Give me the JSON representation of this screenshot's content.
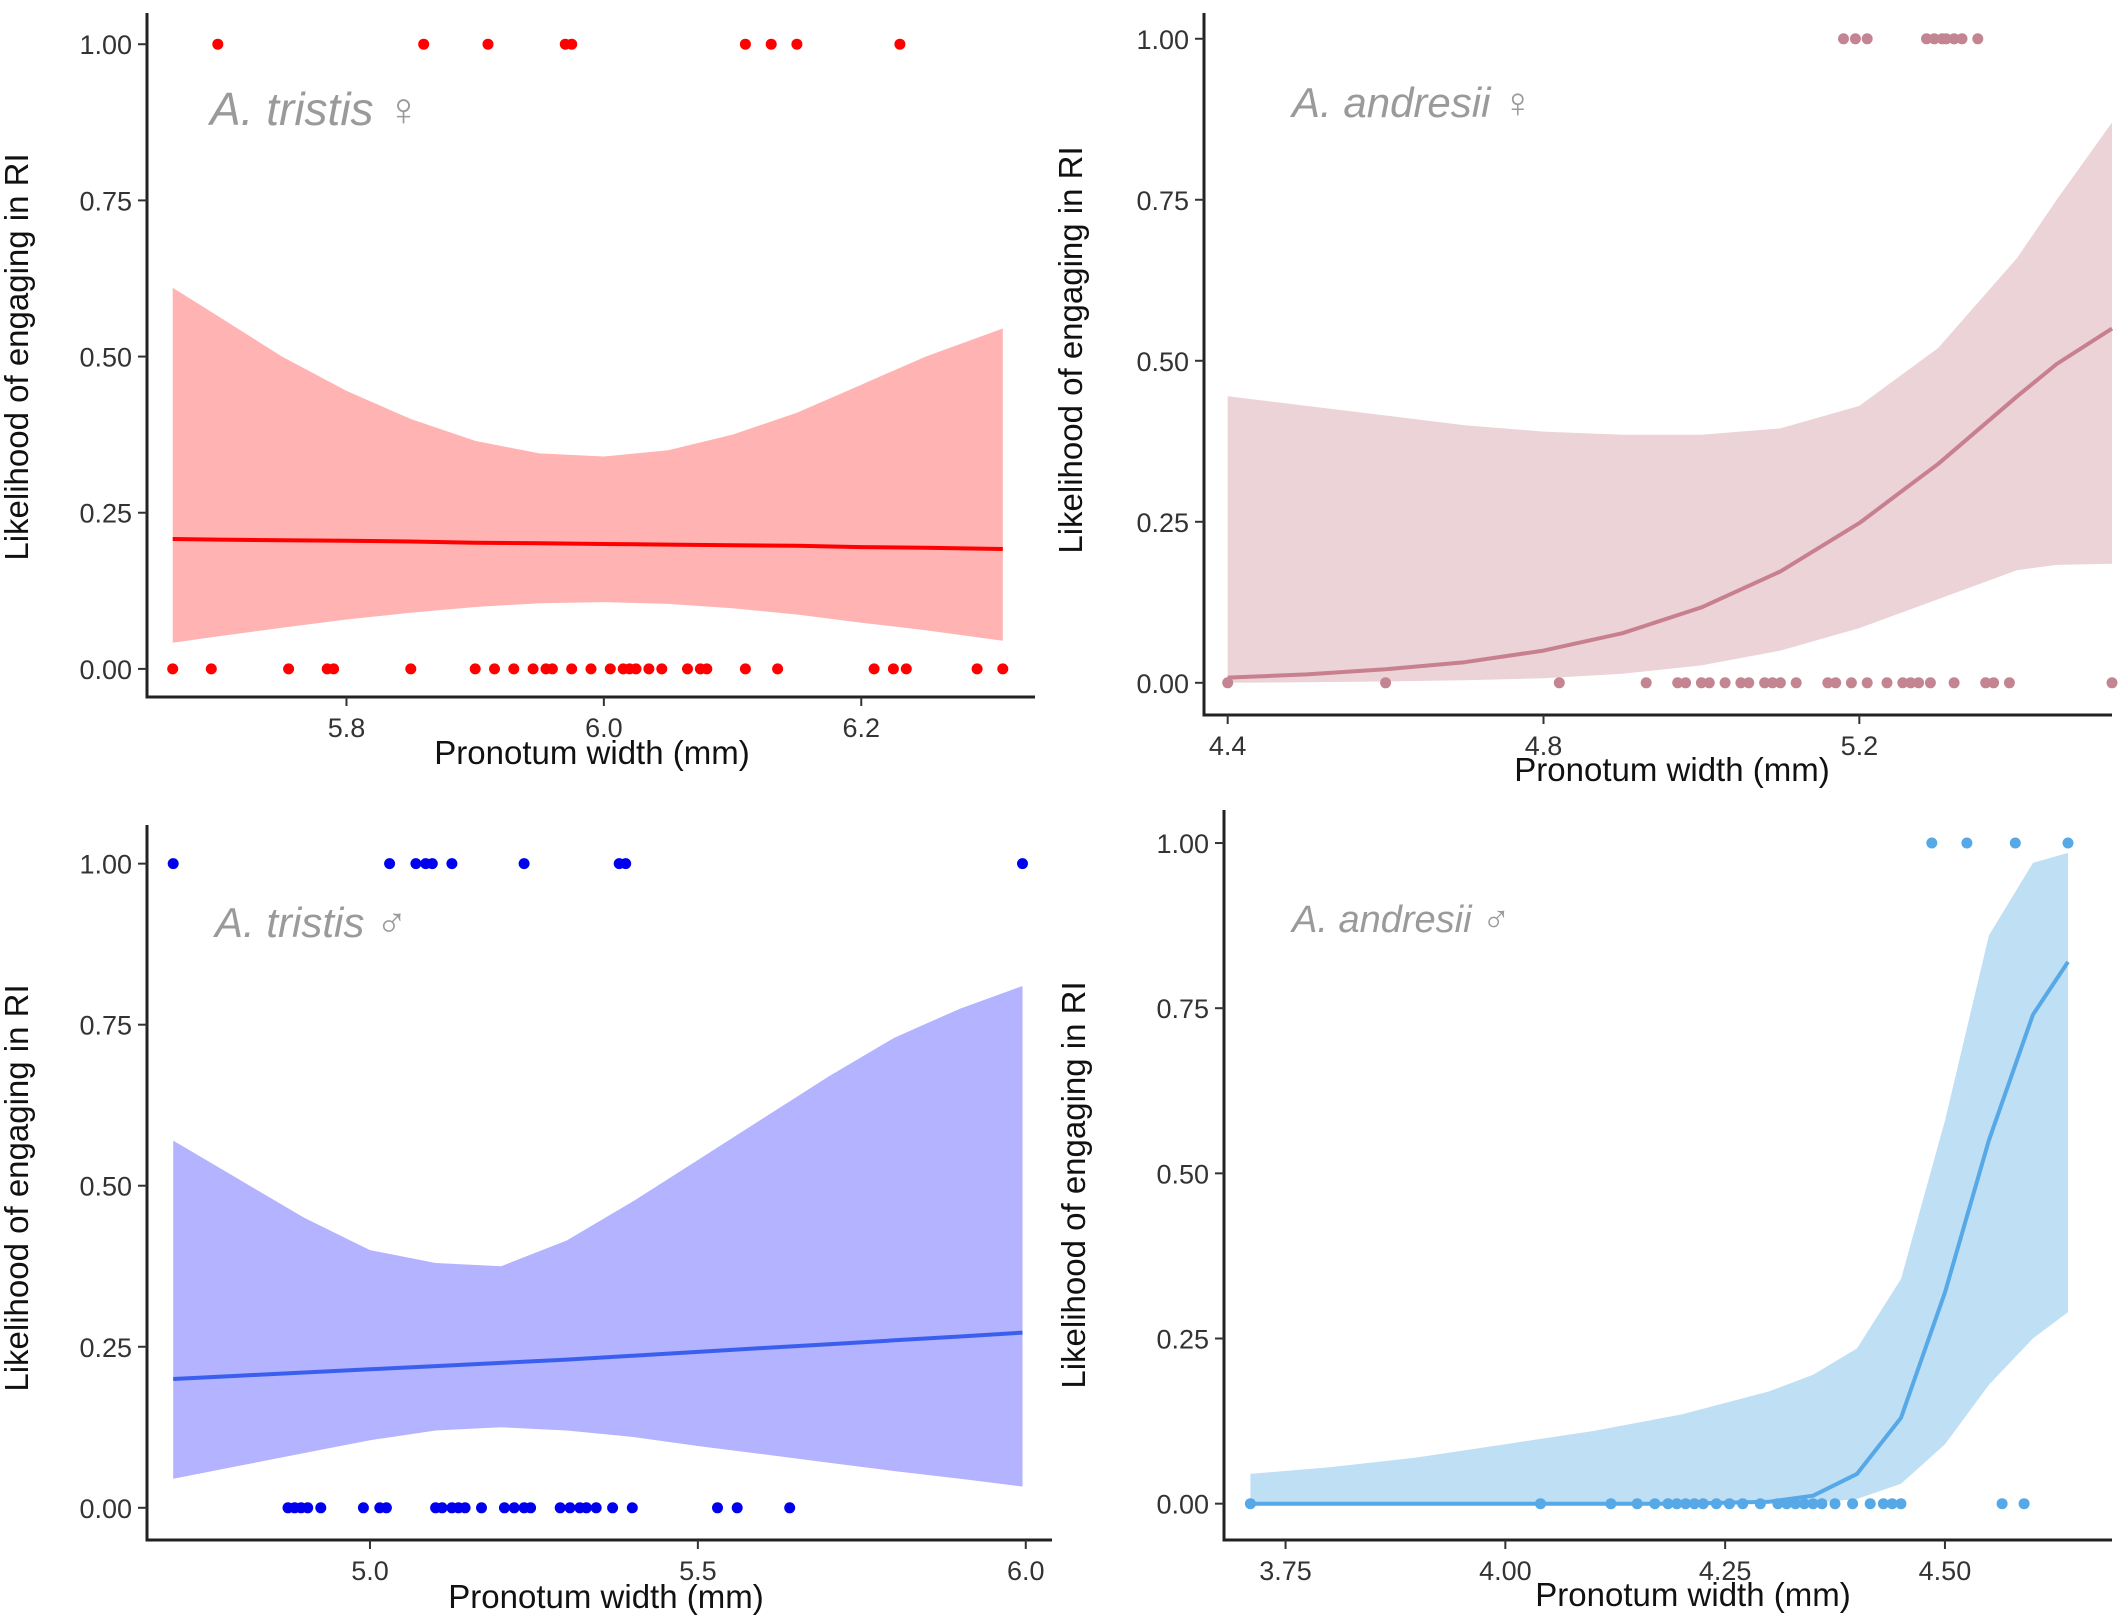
{
  "chart_data": [
    {
      "type": "scatter",
      "panel_label": "A. tristis ♀",
      "xlabel": "Pronotum width (mm)",
      "ylabel": "Likelihood of engaging in RI",
      "xlim": [
        5.645,
        6.335
      ],
      "ylim": [
        -0.045,
        1.05
      ],
      "x_ticks": [
        5.8,
        6.0,
        6.2
      ],
      "x_tick_labels": [
        "5.8",
        "6.0",
        "6.2"
      ],
      "y_ticks": [
        0,
        0.25,
        0.5,
        0.75,
        1.0
      ],
      "y_tick_labels": [
        "0.00",
        "0.25",
        "0.50",
        "0.75",
        "1.00"
      ],
      "colors": {
        "points": "#ff0000",
        "line": "#ff0000",
        "band": "#ffb3b3"
      },
      "points": [
        [
          5.7,
          1
        ],
        [
          5.86,
          1
        ],
        [
          5.91,
          1
        ],
        [
          5.97,
          1
        ],
        [
          5.975,
          1
        ],
        [
          6.11,
          1
        ],
        [
          6.13,
          1
        ],
        [
          6.15,
          1
        ],
        [
          6.23,
          1
        ],
        [
          5.665,
          0
        ],
        [
          5.695,
          0
        ],
        [
          5.755,
          0
        ],
        [
          5.785,
          0
        ],
        [
          5.79,
          0
        ],
        [
          5.85,
          0
        ],
        [
          5.9,
          0
        ],
        [
          5.915,
          0
        ],
        [
          5.93,
          0
        ],
        [
          5.945,
          0
        ],
        [
          5.955,
          0
        ],
        [
          5.96,
          0
        ],
        [
          5.975,
          0
        ],
        [
          5.99,
          0
        ],
        [
          6.005,
          0
        ],
        [
          6.015,
          0
        ],
        [
          6.02,
          0
        ],
        [
          6.025,
          0
        ],
        [
          6.035,
          0
        ],
        [
          6.045,
          0
        ],
        [
          6.065,
          0
        ],
        [
          6.075,
          0
        ],
        [
          6.08,
          0
        ],
        [
          6.11,
          0
        ],
        [
          6.135,
          0
        ],
        [
          6.21,
          0
        ],
        [
          6.225,
          0
        ],
        [
          6.235,
          0
        ],
        [
          6.29,
          0
        ],
        [
          6.31,
          0
        ]
      ],
      "fit": {
        "x": [
          5.665,
          5.7,
          5.75,
          5.8,
          5.85,
          5.9,
          5.95,
          6.0,
          6.05,
          6.1,
          6.15,
          6.2,
          6.25,
          6.31
        ],
        "y": [
          0.208,
          0.207,
          0.206,
          0.205,
          0.204,
          0.202,
          0.201,
          0.2,
          0.199,
          0.198,
          0.197,
          0.195,
          0.194,
          0.192
        ],
        "lower": [
          0.042,
          0.052,
          0.066,
          0.079,
          0.09,
          0.099,
          0.105,
          0.107,
          0.104,
          0.097,
          0.087,
          0.074,
          0.062,
          0.045
        ],
        "upper": [
          0.61,
          0.565,
          0.5,
          0.445,
          0.4,
          0.365,
          0.345,
          0.34,
          0.35,
          0.375,
          0.41,
          0.455,
          0.5,
          0.545
        ]
      }
    },
    {
      "type": "scatter",
      "panel_label": "A. andresii ♀",
      "xlabel": "Pronotum width (mm)",
      "ylabel": "Likelihood of engaging in RI",
      "xlim": [
        4.37,
        5.52
      ],
      "ylim": [
        -0.05,
        1.04
      ],
      "x_ticks": [
        4.4,
        4.8,
        5.2
      ],
      "x_tick_labels": [
        "4.4",
        "4.8",
        "5.2"
      ],
      "y_ticks": [
        0,
        0.25,
        0.5,
        0.75,
        1.0
      ],
      "y_tick_labels": [
        "0.00",
        "0.25",
        "0.50",
        "0.75",
        "1.00"
      ],
      "colors": {
        "points": "#c48593",
        "line": "#c8808f",
        "band": "#ebd3d8"
      },
      "points": [
        [
          5.18,
          1
        ],
        [
          5.195,
          1
        ],
        [
          5.21,
          1
        ],
        [
          5.285,
          1
        ],
        [
          5.295,
          1
        ],
        [
          5.305,
          1
        ],
        [
          5.31,
          1
        ],
        [
          5.32,
          1
        ],
        [
          5.33,
          1
        ],
        [
          5.35,
          1
        ],
        [
          4.4,
          0
        ],
        [
          4.6,
          0
        ],
        [
          4.82,
          0
        ],
        [
          4.93,
          0
        ],
        [
          4.97,
          0
        ],
        [
          4.98,
          0
        ],
        [
          5.0,
          0
        ],
        [
          5.01,
          0
        ],
        [
          5.03,
          0
        ],
        [
          5.05,
          0
        ],
        [
          5.06,
          0
        ],
        [
          5.08,
          0
        ],
        [
          5.09,
          0
        ],
        [
          5.1,
          0
        ],
        [
          5.12,
          0
        ],
        [
          5.16,
          0
        ],
        [
          5.17,
          0
        ],
        [
          5.19,
          0
        ],
        [
          5.21,
          0
        ],
        [
          5.235,
          0
        ],
        [
          5.255,
          0
        ],
        [
          5.265,
          0
        ],
        [
          5.275,
          0
        ],
        [
          5.29,
          0
        ],
        [
          5.32,
          0
        ],
        [
          5.36,
          0
        ],
        [
          5.37,
          0
        ],
        [
          5.39,
          0
        ],
        [
          5.52,
          0
        ]
      ],
      "fit": {
        "x": [
          4.4,
          4.5,
          4.6,
          4.7,
          4.8,
          4.9,
          5.0,
          5.1,
          5.2,
          5.3,
          5.4,
          5.45,
          5.52
        ],
        "y": [
          0.008,
          0.013,
          0.021,
          0.032,
          0.05,
          0.077,
          0.117,
          0.173,
          0.248,
          0.34,
          0.445,
          0.495,
          0.55
        ],
        "lower": [
          0.0,
          0.001,
          0.002,
          0.004,
          0.007,
          0.014,
          0.027,
          0.05,
          0.085,
          0.13,
          0.175,
          0.183,
          0.185
        ],
        "upper": [
          0.445,
          0.43,
          0.415,
          0.4,
          0.39,
          0.385,
          0.385,
          0.395,
          0.43,
          0.52,
          0.66,
          0.75,
          0.87
        ]
      }
    },
    {
      "type": "scatter",
      "panel_label": "A. tristis ♂",
      "xlabel": "Pronotum width (mm)",
      "ylabel": "Likelihood of engaging in RI",
      "xlim": [
        4.66,
        6.04
      ],
      "ylim": [
        -0.05,
        1.06
      ],
      "x_ticks": [
        5.0,
        5.5,
        6.0
      ],
      "x_tick_labels": [
        "5.0",
        "5.5",
        "6.0"
      ],
      "y_ticks": [
        0,
        0.25,
        0.5,
        0.75,
        1.0
      ],
      "y_tick_labels": [
        "0.00",
        "0.25",
        "0.50",
        "0.75",
        "1.00"
      ],
      "colors": {
        "points": "#0000ee",
        "line": "#3a5fee",
        "band": "#b3b3ff"
      },
      "points": [
        [
          4.7,
          1
        ],
        [
          5.03,
          1
        ],
        [
          5.07,
          1
        ],
        [
          5.085,
          1
        ],
        [
          5.095,
          1
        ],
        [
          5.125,
          1
        ],
        [
          5.235,
          1
        ],
        [
          5.38,
          1
        ],
        [
          5.39,
          1
        ],
        [
          5.995,
          1
        ],
        [
          4.875,
          0
        ],
        [
          4.885,
          0
        ],
        [
          4.895,
          0
        ],
        [
          4.905,
          0
        ],
        [
          4.925,
          0
        ],
        [
          4.99,
          0
        ],
        [
          5.015,
          0
        ],
        [
          5.025,
          0
        ],
        [
          5.1,
          0
        ],
        [
          5.11,
          0
        ],
        [
          5.125,
          0
        ],
        [
          5.135,
          0
        ],
        [
          5.145,
          0
        ],
        [
          5.17,
          0
        ],
        [
          5.205,
          0
        ],
        [
          5.22,
          0
        ],
        [
          5.235,
          0
        ],
        [
          5.245,
          0
        ],
        [
          5.29,
          0
        ],
        [
          5.305,
          0
        ],
        [
          5.32,
          0
        ],
        [
          5.33,
          0
        ],
        [
          5.345,
          0
        ],
        [
          5.37,
          0
        ],
        [
          5.4,
          0
        ],
        [
          5.53,
          0
        ],
        [
          5.56,
          0
        ],
        [
          5.64,
          0
        ]
      ],
      "fit": {
        "x": [
          4.7,
          4.8,
          4.9,
          5.0,
          5.1,
          5.2,
          5.3,
          5.4,
          5.5,
          5.6,
          5.7,
          5.8,
          5.9,
          5.995
        ],
        "y": [
          0.2,
          0.205,
          0.21,
          0.215,
          0.22,
          0.225,
          0.23,
          0.236,
          0.242,
          0.248,
          0.254,
          0.26,
          0.266,
          0.272
        ],
        "lower": [
          0.045,
          0.065,
          0.085,
          0.105,
          0.12,
          0.125,
          0.12,
          0.11,
          0.096,
          0.083,
          0.07,
          0.057,
          0.045,
          0.033
        ],
        "upper": [
          0.57,
          0.51,
          0.45,
          0.4,
          0.38,
          0.375,
          0.415,
          0.475,
          0.54,
          0.605,
          0.67,
          0.73,
          0.775,
          0.81
        ]
      }
    },
    {
      "type": "scatter",
      "panel_label": "A. andresii ♂",
      "xlabel": "Pronotum width (mm)",
      "ylabel": "Likelihood of engaging in RI",
      "xlim": [
        3.68,
        4.69
      ],
      "ylim": [
        -0.055,
        1.05
      ],
      "x_ticks": [
        3.75,
        4.0,
        4.25,
        4.5
      ],
      "x_tick_labels": [
        "3.75",
        "4.00",
        "4.25",
        "4.50"
      ],
      "y_ticks": [
        0,
        0.25,
        0.5,
        0.75,
        1.0
      ],
      "y_tick_labels": [
        "0.00",
        "0.25",
        "0.50",
        "0.75",
        "1.00"
      ],
      "colors": {
        "points": "#56a8e6",
        "line": "#56a8e6",
        "band": "#bfdff5"
      },
      "points": [
        [
          4.485,
          1
        ],
        [
          4.525,
          1
        ],
        [
          4.58,
          1
        ],
        [
          4.64,
          1
        ],
        [
          3.71,
          0
        ],
        [
          4.04,
          0
        ],
        [
          4.12,
          0
        ],
        [
          4.15,
          0
        ],
        [
          4.17,
          0
        ],
        [
          4.185,
          0
        ],
        [
          4.195,
          0
        ],
        [
          4.205,
          0
        ],
        [
          4.215,
          0
        ],
        [
          4.225,
          0
        ],
        [
          4.24,
          0
        ],
        [
          4.255,
          0
        ],
        [
          4.27,
          0
        ],
        [
          4.29,
          0
        ],
        [
          4.31,
          0
        ],
        [
          4.32,
          0
        ],
        [
          4.33,
          0
        ],
        [
          4.34,
          0
        ],
        [
          4.35,
          0
        ],
        [
          4.36,
          0
        ],
        [
          4.375,
          0
        ],
        [
          4.395,
          0
        ],
        [
          4.415,
          0
        ],
        [
          4.43,
          0
        ],
        [
          4.44,
          0
        ],
        [
          4.45,
          0
        ],
        [
          4.565,
          0
        ],
        [
          4.59,
          0
        ]
      ],
      "fit": {
        "x": [
          3.71,
          3.8,
          3.9,
          4.0,
          4.1,
          4.2,
          4.3,
          4.35,
          4.4,
          4.45,
          4.5,
          4.55,
          4.6,
          4.64
        ],
        "y": [
          0.0,
          0.0,
          0.0,
          0.0,
          0.0,
          0.0,
          0.003,
          0.012,
          0.045,
          0.13,
          0.32,
          0.55,
          0.74,
          0.82
        ],
        "lower": [
          0.0,
          0.0,
          0.0,
          0.0,
          0.0,
          0.0,
          0.0,
          0.001,
          0.007,
          0.03,
          0.09,
          0.18,
          0.25,
          0.29
        ],
        "upper": [
          0.045,
          0.055,
          0.07,
          0.09,
          0.11,
          0.135,
          0.17,
          0.195,
          0.235,
          0.34,
          0.58,
          0.86,
          0.97,
          0.985
        ]
      }
    }
  ]
}
